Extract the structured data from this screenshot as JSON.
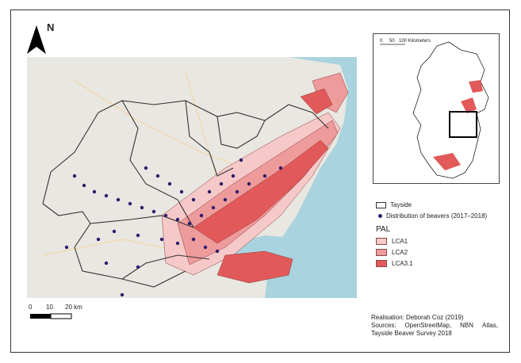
{
  "north": {
    "label": "N"
  },
  "inset": {
    "scale_labels": [
      "0",
      "50",
      "100 Kilometers"
    ]
  },
  "legend": {
    "tayside": "Tayside",
    "beavers": "Distribution of beavers (2017–2018)",
    "pal_heading": "PAL",
    "classes": [
      {
        "label": "LCA1",
        "color": "#f6c9c9"
      },
      {
        "label": "LCA2",
        "color": "#ee9b9b"
      },
      {
        "label": "LCA3.1",
        "color": "#e2595a"
      }
    ]
  },
  "scale": {
    "labels": [
      "0",
      "10",
      "20 km"
    ]
  },
  "credits": {
    "realisation": "Realisation: Deborah Coz (2019)",
    "sources_prefix": "Sources:",
    "sources_1": "OpenStreetMap,",
    "sources_2": "NBN",
    "sources_3": "Atlas,",
    "sources_line2": "Tayside Beaver Survey 2018"
  },
  "colors": {
    "sea": "#a9d3df",
    "land": "#e9e7e1",
    "beaver": "#2e1a6e",
    "boundary": "#333333"
  }
}
